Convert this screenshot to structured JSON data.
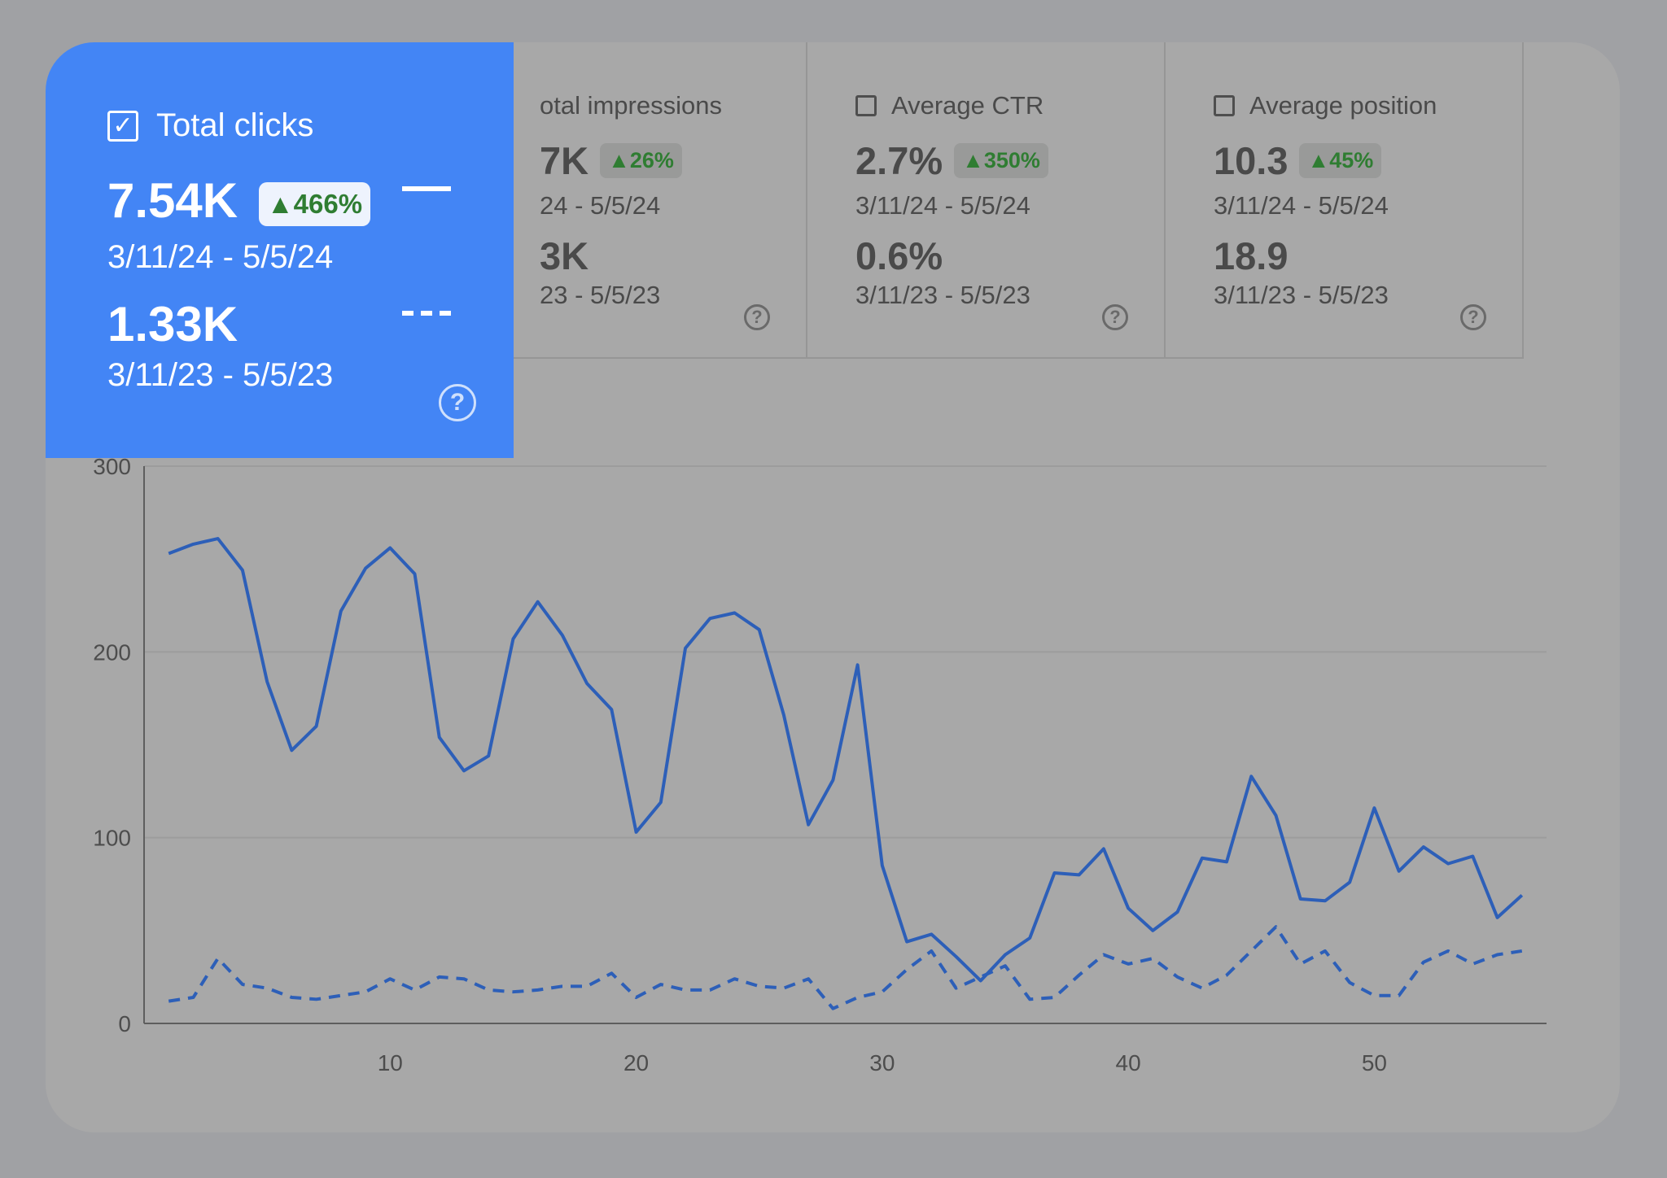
{
  "highlight_card": {
    "label": "Total clicks",
    "checked": true,
    "current_value": "7.54K",
    "change_badge": "▲466%",
    "current_range": "3/11/24 - 5/5/24",
    "previous_value": "1.33K",
    "previous_range": "3/11/23 - 5/5/23"
  },
  "metric_cards": [
    {
      "label": "otal impressions",
      "checked": false,
      "current_value": "7K",
      "change_badge": "▲26%",
      "current_range": "24 - 5/5/24",
      "previous_value": "3K",
      "previous_range": "23 - 5/5/23"
    },
    {
      "label": "Average CTR",
      "checked": false,
      "current_value": "2.7%",
      "change_badge": "▲350%",
      "current_range": "3/11/24 - 5/5/24",
      "previous_value": "0.6%",
      "previous_range": "3/11/23 - 5/5/23"
    },
    {
      "label": "Average position",
      "checked": false,
      "current_value": "10.3",
      "change_badge": "▲45%",
      "current_range": "3/11/24 - 5/5/24",
      "previous_value": "18.9",
      "previous_range": "3/11/23 - 5/5/23"
    }
  ],
  "icons": {
    "help": "?",
    "check": "✓"
  },
  "colors": {
    "highlight_bg": "#4385f5",
    "series_current": "#2d5fb8",
    "series_previous": "#2d5fb8",
    "positive_change": "#2f7d32"
  },
  "chart_data": {
    "type": "line",
    "ylim": [
      0,
      300
    ],
    "xlim": [
      0,
      57
    ],
    "yticks": [
      0,
      100,
      200,
      300
    ],
    "xticks": [
      10,
      20,
      30,
      40,
      50
    ],
    "grid": true,
    "series": [
      {
        "line_style": "solid",
        "x": [
          1,
          2,
          3,
          4,
          5,
          6,
          7,
          8,
          9,
          10,
          11,
          12,
          13,
          14,
          15,
          16,
          17,
          18,
          19,
          20,
          21,
          22,
          23,
          24,
          25,
          26,
          27,
          28,
          29,
          30,
          31,
          32,
          33,
          34,
          35,
          36,
          37,
          38,
          39,
          40,
          41,
          42,
          43,
          44,
          45,
          46,
          47,
          48,
          49,
          50,
          51,
          52,
          53,
          54,
          55,
          56
        ],
        "values": [
          253,
          258,
          261,
          244,
          184,
          147,
          160,
          222,
          245,
          256,
          242,
          154,
          136,
          144,
          207,
          227,
          209,
          183,
          169,
          103,
          119,
          202,
          218,
          221,
          212,
          166,
          107,
          131,
          193,
          85,
          44,
          48,
          36,
          23,
          37,
          46,
          81,
          80,
          94,
          62,
          50,
          60,
          89,
          87,
          133,
          112,
          67,
          66,
          76,
          116,
          82,
          95,
          86,
          90,
          57,
          69
        ]
      },
      {
        "line_style": "dashed",
        "x": [
          1,
          2,
          3,
          4,
          5,
          6,
          7,
          8,
          9,
          10,
          11,
          12,
          13,
          14,
          15,
          16,
          17,
          18,
          19,
          20,
          21,
          22,
          23,
          24,
          25,
          26,
          27,
          28,
          29,
          30,
          31,
          32,
          33,
          34,
          35,
          36,
          37,
          38,
          39,
          40,
          41,
          42,
          43,
          44,
          45,
          46,
          47,
          48,
          49,
          50,
          51,
          52,
          53,
          54,
          55,
          56
        ],
        "values": [
          12,
          14,
          35,
          21,
          19,
          14,
          13,
          15,
          17,
          24,
          18,
          25,
          24,
          18,
          17,
          18,
          20,
          20,
          27,
          14,
          21,
          18,
          18,
          24,
          20,
          19,
          24,
          8,
          14,
          17,
          29,
          39,
          19,
          25,
          31,
          13,
          14,
          26,
          37,
          32,
          35,
          25,
          19,
          26,
          39,
          52,
          32,
          39,
          22,
          15,
          15,
          33,
          39,
          32,
          37,
          39
        ]
      }
    ]
  }
}
